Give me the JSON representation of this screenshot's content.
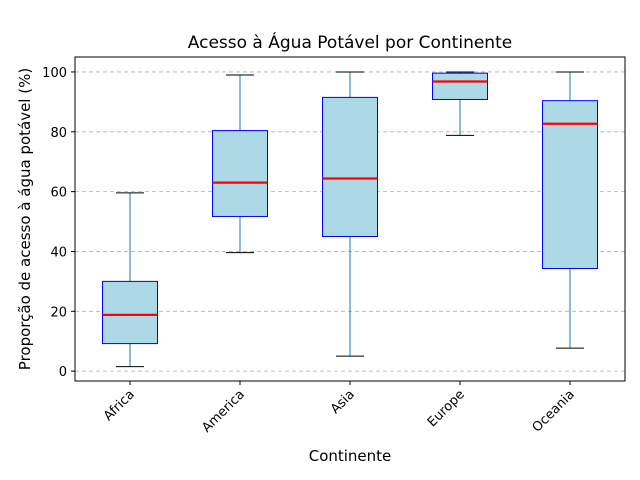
{
  "chart_data": {
    "type": "box",
    "title": "Acesso à Água Potável por Continente",
    "xlabel": "Continente",
    "ylabel": "Proporção de acesso à água potável (%)",
    "ylim": [
      -3.3,
      105
    ],
    "yticks": [
      0,
      20,
      40,
      60,
      80,
      100
    ],
    "grid": "y-dashed",
    "categories": [
      "Africa",
      "America",
      "Asia",
      "Europe",
      "Oceania"
    ],
    "boxes": [
      {
        "category": "Africa",
        "whisker_low": 1.5,
        "q1": 9.2,
        "median": 18.8,
        "q3": 30.0,
        "whisker_high": 59.6
      },
      {
        "category": "America",
        "whisker_low": 39.6,
        "q1": 51.7,
        "median": 63.0,
        "q3": 80.4,
        "whisker_high": 99.0
      },
      {
        "category": "Asia",
        "whisker_low": 5.0,
        "q1": 45.0,
        "median": 64.4,
        "q3": 91.5,
        "whisker_high": 100.0
      },
      {
        "category": "Europe",
        "whisker_low": 78.8,
        "q1": 90.8,
        "median": 96.8,
        "q3": 99.6,
        "whisker_high": 100.0
      },
      {
        "category": "Oceania",
        "whisker_low": 7.7,
        "q1": 34.3,
        "median": 82.7,
        "q3": 90.4,
        "whisker_high": 100.0
      }
    ],
    "colors": {
      "box_fill": "#add8e6",
      "box_edge": "#0000ff",
      "median": "#ff0000",
      "whisker": "#1f77b4",
      "cap": "#000000",
      "grid": "#b0b0b0"
    }
  }
}
